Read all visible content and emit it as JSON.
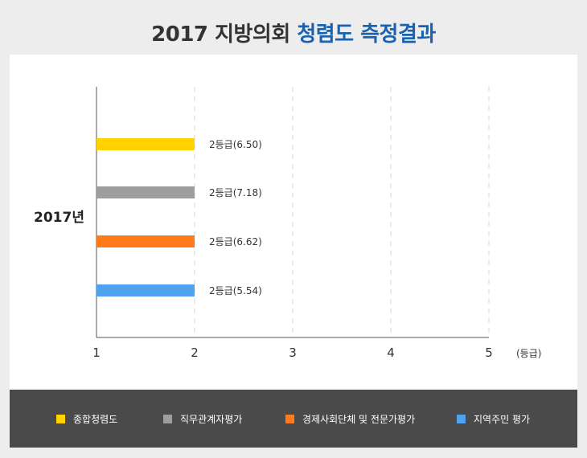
{
  "title": {
    "part1": "2017 지방의회",
    "part2": "청렴도 측정결과"
  },
  "colors": {
    "title_highlight": "#1a62b0",
    "legend_bg": "#4a4a4a"
  },
  "chart_data": {
    "type": "bar",
    "orientation": "horizontal",
    "category_label": "2017년",
    "x_unit_label": "(등급)",
    "xlim": [
      1,
      5
    ],
    "x_ticks": [
      "1",
      "2",
      "3",
      "4",
      "5"
    ],
    "grid": "vertical dashed",
    "legend_position": "bottom",
    "series": [
      {
        "name": "종합청렴도",
        "value": 2,
        "label": "2등급(6.50)",
        "color": "#ffd200"
      },
      {
        "name": "직무관계자평가",
        "value": 2,
        "label": "2등급(7.18)",
        "color": "#9e9e9e"
      },
      {
        "name": "경제사회단체 및 전문가평가",
        "value": 2,
        "label": "2등급(6.62)",
        "color": "#ff7a1a"
      },
      {
        "name": "지역주민 평가",
        "value": 2,
        "label": "2등급(5.54)",
        "color": "#4ea2ee"
      }
    ]
  }
}
